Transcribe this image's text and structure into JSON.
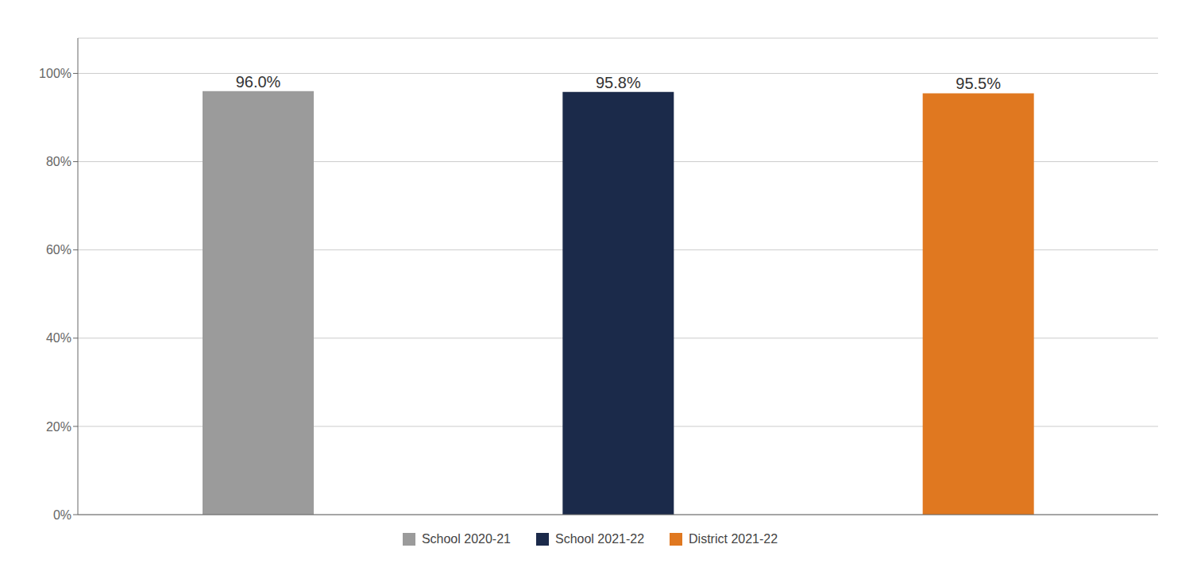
{
  "chart_data": {
    "type": "bar",
    "categories": [
      "School 2020-21",
      "School 2021-22",
      "District 2021-22"
    ],
    "values": [
      0.96,
      0.958,
      0.955
    ],
    "value_labels": [
      "96.0%",
      "95.8%",
      "95.5%"
    ],
    "data_labels": true,
    "colors": [
      "#9b9b9b",
      "#1b2a4a",
      "#e07820"
    ],
    "ylim": [
      0,
      1.08
    ],
    "yticks": [
      {
        "value": 0.0,
        "label": "0%"
      },
      {
        "value": 0.2,
        "label": "20%"
      },
      {
        "value": 0.4,
        "label": "40%"
      },
      {
        "value": 0.6,
        "label": "60%"
      },
      {
        "value": 0.8,
        "label": "80%"
      },
      {
        "value": 1.0,
        "label": "100%"
      }
    ],
    "grid": true,
    "legend": "bottom",
    "tick_labels": "y"
  }
}
